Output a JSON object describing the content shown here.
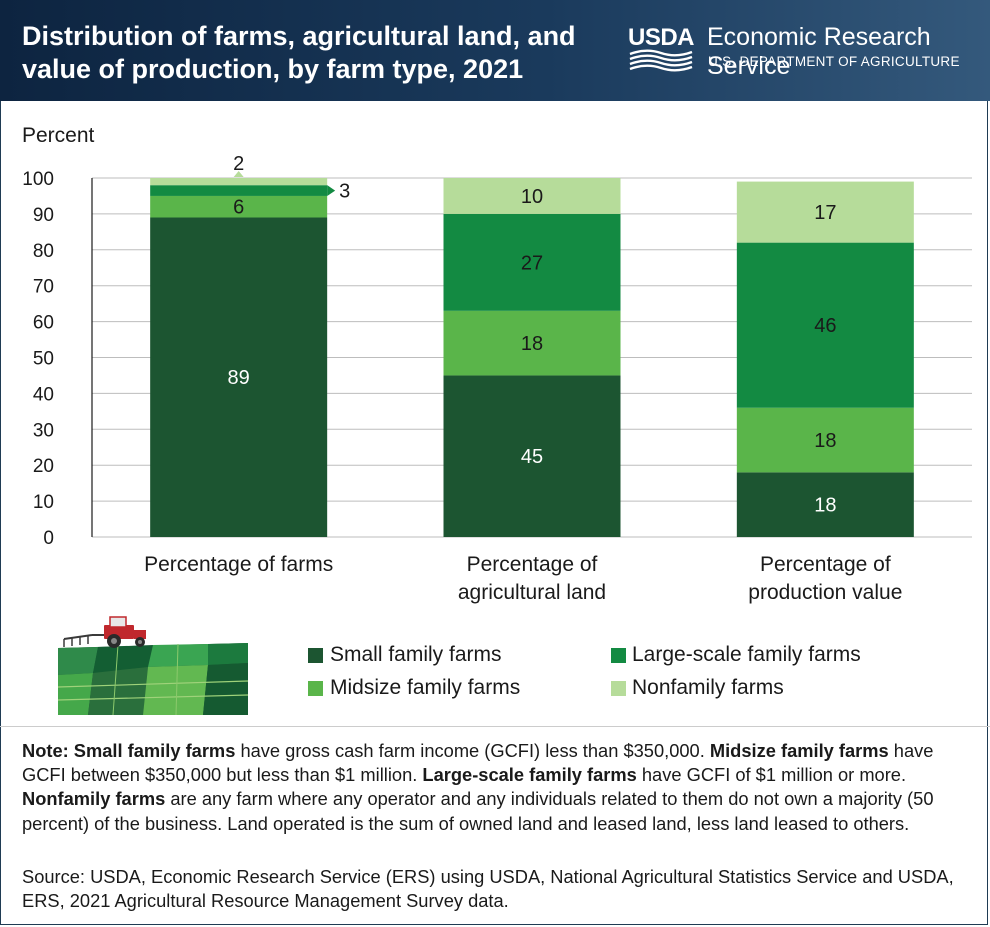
{
  "header": {
    "title": "Distribution of farms, agricultural land, and value of production, by farm type, 2021",
    "usda_logo_text": "USDA",
    "agency_name": "Economic Research Service",
    "department_name": "U.S. DEPARTMENT OF AGRICULTURE"
  },
  "colors": {
    "small": "#1c5531",
    "midsize": "#5ab54a",
    "large": "#138a42",
    "nonfamily": "#b6dc9a",
    "header_bg": "#13304d"
  },
  "chart_data": {
    "type": "bar",
    "stacked": true,
    "ylabel": "Percent",
    "ylim": [
      0,
      100
    ],
    "yticks": [
      0,
      10,
      20,
      30,
      40,
      50,
      60,
      70,
      80,
      90,
      100
    ],
    "grid": true,
    "categories": [
      "Percentage of farms",
      "Percentage of agricultural land",
      "Percentage of production value"
    ],
    "category_lines": [
      [
        "Percentage of farms"
      ],
      [
        "Percentage of",
        "agricultural land"
      ],
      [
        "Percentage of",
        "production value"
      ]
    ],
    "series": [
      {
        "name": "Small family farms",
        "values": [
          89,
          45,
          18
        ],
        "labels": [
          "89",
          "45",
          "18"
        ]
      },
      {
        "name": "Midsize family farms",
        "values": [
          6,
          18,
          18
        ],
        "labels": [
          "6",
          "18",
          "18"
        ]
      },
      {
        "name": "Large-scale family farms",
        "values": [
          3,
          27,
          46
        ],
        "labels": [
          "3",
          "27",
          "46"
        ]
      },
      {
        "name": "Nonfamily farms",
        "values": [
          2,
          10,
          17
        ],
        "labels": [
          "2",
          "10",
          "17"
        ]
      }
    ]
  },
  "legend": {
    "items": [
      {
        "label": "Small family farms"
      },
      {
        "label": "Large-scale family farms"
      },
      {
        "label": "Midsize family farms"
      },
      {
        "label": "Nonfamily farms"
      }
    ]
  },
  "note": {
    "prefix": "Note: ",
    "small_term": "Small family farms",
    "small_text": " have gross cash farm income (GCFI) less than $350,000. ",
    "midsize_term": "Midsize family farms",
    "midsize_text": " have GCFI between $350,000 but less than $1 million. ",
    "large_term": "Large-scale family farms",
    "large_text": " have GCFI of $1 million or more. ",
    "nonfamily_term": "Nonfamily farms",
    "nonfamily_text": " are any farm where any operator and any individuals related to them do not own a majority (50 percent) of the business. Land operated is the sum of owned land and leased land, less land leased to others."
  },
  "source": {
    "text": "Source: USDA, Economic Research Service (ERS) using USDA, National Agricultural Statistics Service and USDA, ERS, 2021 Agricultural Resource Management Survey data."
  }
}
